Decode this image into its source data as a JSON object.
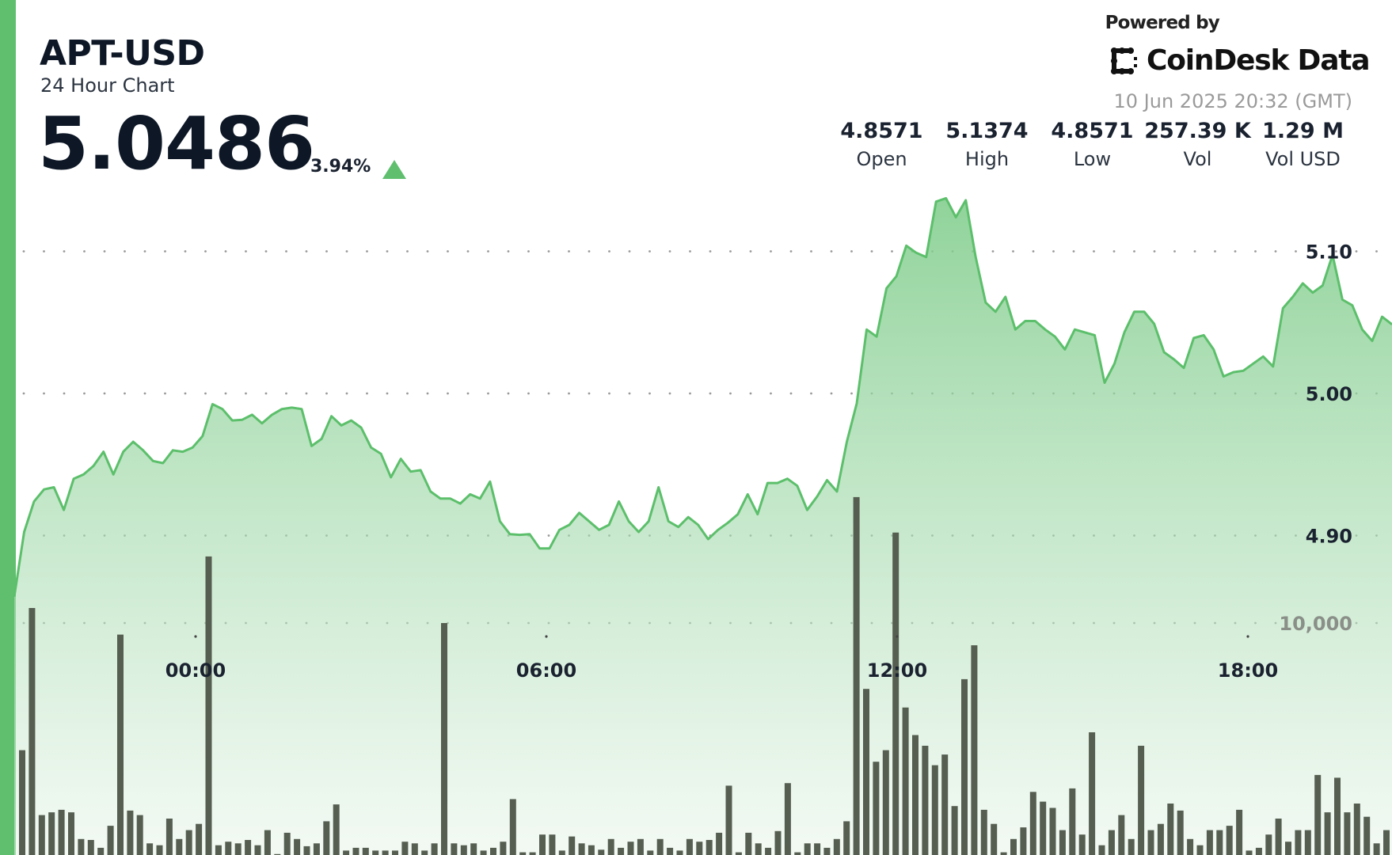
{
  "header": {
    "symbol": "APT-USD",
    "subtitle": "24 Hour Chart",
    "price": "5.0486",
    "change_pct": "3.94%",
    "change_direction": "up",
    "powered_by": "Powered by",
    "brand": "CoinDesk Data",
    "timestamp": "10 Jun 2025 20:32 (GMT)"
  },
  "stats": [
    {
      "value": "4.8571",
      "label": "Open"
    },
    {
      "value": "5.1374",
      "label": "High"
    },
    {
      "value": "4.8571",
      "label": "Low"
    },
    {
      "value": "257.39 K",
      "label": "Vol"
    },
    {
      "value": "1.29 M",
      "label": "Vol USD"
    }
  ],
  "colors": {
    "accent": "#5fbf6f",
    "line": "#5cbf6b",
    "volume": "#555e50",
    "up": "#5fbf6f"
  },
  "chart_data": {
    "type": "area",
    "grid": "dotted horizontal",
    "price_axis": {
      "ticks": [
        "5.10",
        "5.00",
        "4.90"
      ],
      "tick_values": [
        5.1,
        5.0,
        4.9
      ],
      "range": [
        4.85,
        5.16
      ]
    },
    "volume_axis": {
      "ticks": [
        "10,000"
      ],
      "tick_values": [
        10000
      ]
    },
    "x_ticks": [
      "00:00",
      "06:00",
      "12:00",
      "18:00"
    ],
    "price": [
      4.857,
      4.9025,
      4.924,
      4.9325,
      4.934,
      4.918,
      4.94,
      4.943,
      4.949,
      4.959,
      4.943,
      4.959,
      4.966,
      4.96,
      4.9525,
      4.951,
      4.96,
      4.959,
      4.962,
      4.97,
      4.9925,
      4.989,
      4.981,
      4.9815,
      4.985,
      4.979,
      4.985,
      4.989,
      4.99,
      4.989,
      4.963,
      4.968,
      4.984,
      4.9775,
      4.981,
      4.976,
      4.962,
      4.9575,
      4.941,
      4.954,
      4.945,
      4.946,
      4.931,
      4.926,
      4.926,
      4.9225,
      4.929,
      4.926,
      4.938,
      4.91,
      4.901,
      4.9005,
      4.901,
      4.891,
      4.891,
      4.904,
      4.9075,
      4.916,
      4.91,
      4.904,
      4.9075,
      4.924,
      4.91,
      4.9025,
      4.91,
      4.934,
      4.91,
      4.906,
      4.913,
      4.9075,
      4.8975,
      4.904,
      4.909,
      4.915,
      4.929,
      4.915,
      4.937,
      4.937,
      4.94,
      4.935,
      4.918,
      4.9275,
      4.939,
      4.931,
      4.966,
      4.993,
      5.045,
      5.04,
      5.074,
      5.0825,
      5.104,
      5.099,
      5.096,
      5.135,
      5.1374,
      5.124,
      5.136,
      5.096,
      5.064,
      5.0575,
      5.068,
      5.045,
      5.051,
      5.051,
      5.045,
      5.04,
      5.031,
      5.045,
      5.043,
      5.041,
      5.0075,
      5.021,
      5.043,
      5.0575,
      5.0575,
      5.049,
      5.029,
      5.024,
      5.018,
      5.039,
      5.041,
      5.031,
      5.012,
      5.015,
      5.016,
      5.021,
      5.026,
      5.019,
      5.06,
      5.068,
      5.0775,
      5.071,
      5.076,
      5.0975,
      5.066,
      5.062,
      5.045,
      5.037,
      5.054,
      5.0486
    ],
    "volume": [
      4520,
      10650,
      1720,
      1840,
      1950,
      1840,
      690,
      650,
      310,
      1260,
      9500,
      1915,
      1720,
      500,
      420,
      1570,
      690,
      1070,
      1340,
      12870,
      420,
      575,
      500,
      650,
      420,
      1070,
      40,
      960,
      690,
      380,
      500,
      1455,
      2180,
      190,
      310,
      310,
      190,
      190,
      190,
      575,
      500,
      190,
      500,
      10000,
      500,
      420,
      500,
      190,
      310,
      575,
      2410,
      115,
      115,
      880,
      880,
      190,
      800,
      500,
      420,
      230,
      690,
      310,
      575,
      690,
      190,
      690,
      310,
      190,
      690,
      575,
      650,
      960,
      2990,
      115,
      960,
      500,
      310,
      1030,
      3100,
      115,
      500,
      500,
      310,
      690,
      1455,
      15430,
      7160,
      4020,
      4520,
      13900,
      6360,
      5170,
      4710,
      3870,
      4330,
      2110,
      7580,
      9040,
      1950,
      1340,
      115,
      690,
      1190,
      2720,
      2300,
      2030,
      1070,
      2870,
      880,
      5290,
      420,
      1070,
      1720,
      690,
      4710,
      1070,
      1340,
      2220,
      1915,
      690,
      420,
      1070,
      1070,
      1260,
      1950,
      190,
      310,
      880,
      1570,
      575,
      1070,
      1070,
      3450,
      1840,
      3330,
      1840,
      2220,
      1650,
      500,
      1070
    ]
  }
}
